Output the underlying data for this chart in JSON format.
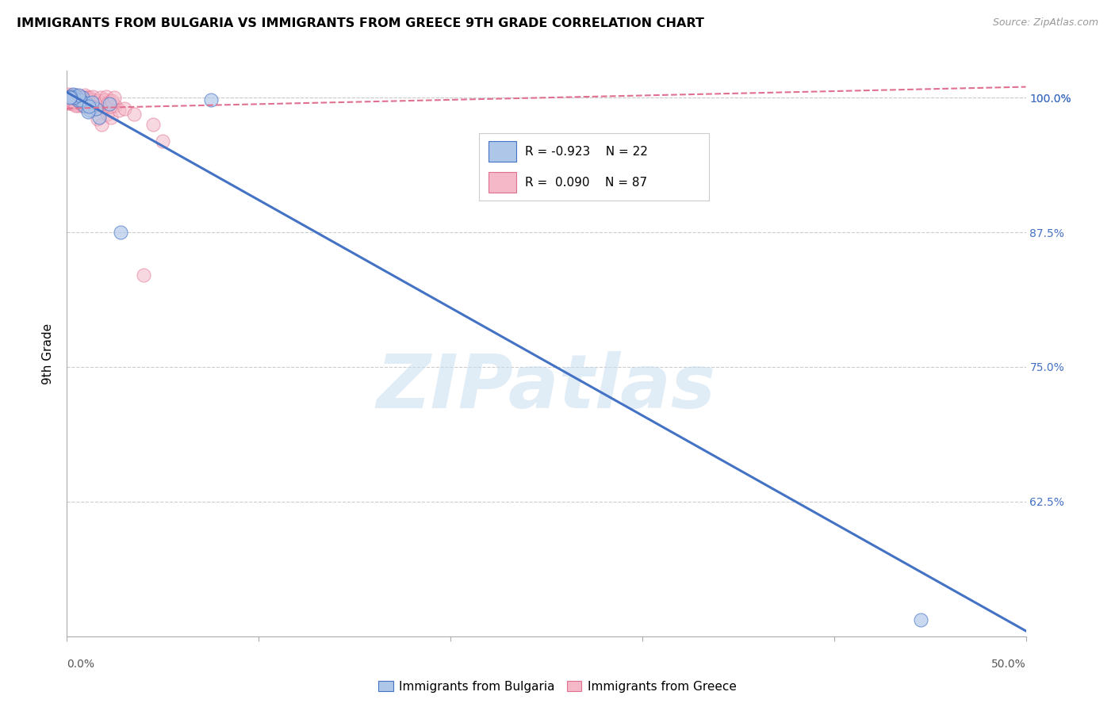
{
  "title": "IMMIGRANTS FROM BULGARIA VS IMMIGRANTS FROM GREECE 9TH GRADE CORRELATION CHART",
  "source": "Source: ZipAtlas.com",
  "ylabel": "9th Grade",
  "xlim": [
    0.0,
    50.0
  ],
  "ylim": [
    50.0,
    102.5
  ],
  "yticks": [
    62.5,
    75.0,
    87.5,
    100.0
  ],
  "ytick_labels": [
    "62.5%",
    "75.0%",
    "87.5%",
    "100.0%"
  ],
  "top_line_y": 100.0,
  "legend_blue_r": "-0.923",
  "legend_blue_n": "22",
  "legend_pink_r": "0.090",
  "legend_pink_n": "87",
  "blue_fill_color": "#aec6e8",
  "pink_fill_color": "#f4b8c8",
  "blue_edge_color": "#4472c4",
  "pink_edge_color": "#e07090",
  "blue_line_color": "#4472c4",
  "pink_line_color": "#e07090",
  "right_tick_color": "#4472c4",
  "watermark": "ZIPatlas",
  "blue_line_x": [
    0.0,
    50.0
  ],
  "blue_line_y": [
    100.5,
    50.5
  ],
  "pink_line_x": [
    0.0,
    50.0
  ],
  "pink_line_y": [
    99.0,
    101.0
  ],
  "blue_scatter_x": [
    0.4,
    0.6,
    0.8,
    1.0,
    1.2,
    0.3,
    1.7,
    1.5,
    0.5,
    0.9,
    0.7,
    0.35,
    1.3,
    2.2,
    0.6,
    1.1,
    0.2,
    2.8,
    1.15,
    0.15,
    7.5,
    44.5
  ],
  "blue_scatter_y": [
    100.2,
    99.7,
    100.0,
    99.5,
    98.8,
    100.3,
    98.2,
    99.0,
    100.1,
    99.3,
    99.8,
    100.0,
    99.6,
    99.4,
    100.2,
    98.7,
    100.1,
    87.5,
    99.2,
    100.0,
    99.8,
    51.5
  ],
  "pink_scatter_x": [
    0.05,
    0.08,
    0.1,
    0.12,
    0.15,
    0.18,
    0.2,
    0.22,
    0.25,
    0.28,
    0.3,
    0.32,
    0.35,
    0.38,
    0.4,
    0.42,
    0.45,
    0.48,
    0.5,
    0.52,
    0.55,
    0.58,
    0.6,
    0.62,
    0.65,
    0.68,
    0.7,
    0.72,
    0.75,
    0.78,
    0.8,
    0.82,
    0.85,
    0.88,
    0.9,
    0.92,
    0.95,
    0.98,
    1.0,
    1.05,
    1.1,
    1.15,
    1.2,
    1.25,
    1.3,
    1.35,
    1.4,
    1.5,
    1.6,
    1.7,
    1.8,
    1.9,
    2.0,
    2.1,
    2.2,
    2.3,
    2.5,
    2.7,
    3.0,
    0.15,
    0.25,
    0.35,
    0.45,
    0.55,
    0.65,
    0.75,
    0.85,
    0.95,
    1.05,
    1.15,
    1.25,
    1.35,
    1.45,
    1.55,
    1.65,
    1.75,
    1.85,
    1.95,
    2.05,
    2.15,
    2.25,
    2.35,
    2.45,
    3.5,
    4.0,
    4.5,
    5.0
  ],
  "pink_scatter_y": [
    99.8,
    100.1,
    99.5,
    100.3,
    99.7,
    100.0,
    99.8,
    100.2,
    99.5,
    99.9,
    100.0,
    99.6,
    99.8,
    100.1,
    99.4,
    100.0,
    99.7,
    100.2,
    99.5,
    99.8,
    99.3,
    100.0,
    99.7,
    100.1,
    99.5,
    99.9,
    100.0,
    99.6,
    99.8,
    100.1,
    99.4,
    100.0,
    99.7,
    99.3,
    99.8,
    100.2,
    99.5,
    99.9,
    100.0,
    99.6,
    99.3,
    99.8,
    100.0,
    99.5,
    99.7,
    99.2,
    98.8,
    99.5,
    98.0,
    99.2,
    97.5,
    99.0,
    99.5,
    98.5,
    99.7,
    98.2,
    99.3,
    98.8,
    99.0,
    99.5,
    99.7,
    100.0,
    99.3,
    99.8,
    100.1,
    99.5,
    99.2,
    99.7,
    100.0,
    99.4,
    99.8,
    100.1,
    99.5,
    99.2,
    99.7,
    100.0,
    99.4,
    99.8,
    100.1,
    99.5,
    99.2,
    99.7,
    100.0,
    98.5,
    83.5,
    97.5,
    96.0
  ]
}
